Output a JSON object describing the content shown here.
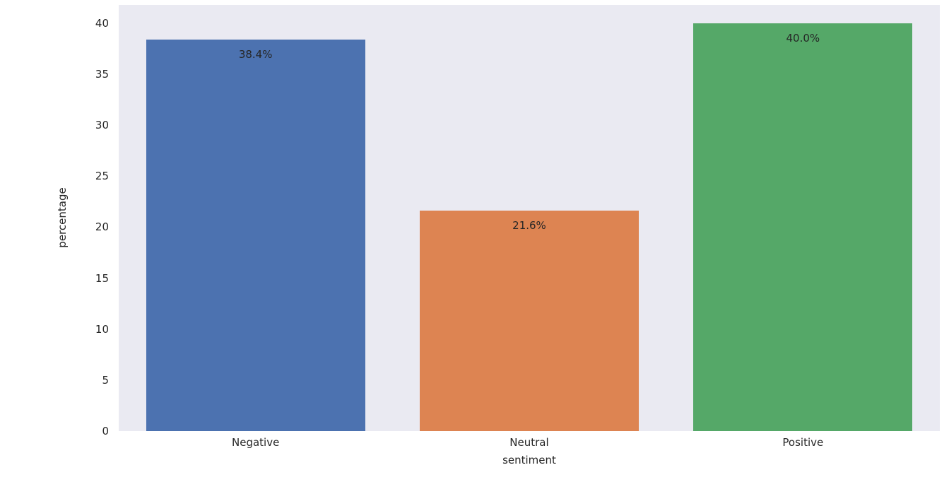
{
  "chart_data": {
    "type": "bar",
    "title": "",
    "categories": [
      "Negative",
      "Neutral",
      "Positive"
    ],
    "values": [
      38.4,
      21.6,
      40.0
    ],
    "value_labels": [
      "38.4%",
      "21.6%",
      "40.0%"
    ],
    "bar_colors": [
      "#4C72B0",
      "#DD8452",
      "#55A868"
    ],
    "xlabel": "sentiment",
    "ylabel": "percentage",
    "ylim": [
      0,
      40
    ],
    "yticks": [
      0,
      5,
      10,
      15,
      20,
      25,
      30,
      35,
      40
    ],
    "grid": false,
    "legend_position": "none",
    "plot_background": "#EAEAF2",
    "figure_background": "#FFFFFF"
  }
}
